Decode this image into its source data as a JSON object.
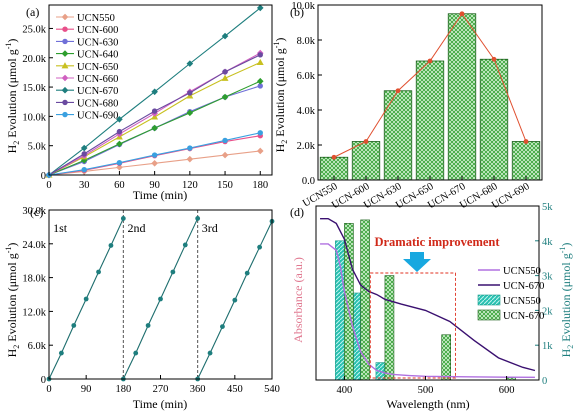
{
  "chart_data": [
    {
      "panel": "(a)",
      "type": "line",
      "xlabel": "Time (min)",
      "ylabel": "H2 Evolution (μmol g-1)",
      "xlim": [
        0,
        190
      ],
      "ylim": [
        0,
        29
      ],
      "xticks": [
        "0",
        "30",
        "60",
        "90",
        "120",
        "150",
        "180"
      ],
      "yticks": [
        "0",
        "5.0k",
        "10.0k",
        "15.0k",
        "20.0k",
        "25.0k"
      ],
      "x": [
        0,
        30,
        60,
        90,
        120,
        150,
        180
      ],
      "series": [
        {
          "name": "UCN550",
          "color": "#E8A088",
          "marker": "diamond",
          "values": [
            0,
            0.6,
            1.3,
            2.0,
            2.7,
            3.4,
            4.1
          ]
        },
        {
          "name": "UCN-600",
          "color": "#E8508A",
          "marker": "circle",
          "values": [
            0,
            0.8,
            2.0,
            3.3,
            4.5,
            5.7,
            6.7
          ]
        },
        {
          "name": "UCN-630",
          "color": "#7070D8",
          "marker": "circle",
          "values": [
            0,
            2.3,
            5.2,
            8.0,
            10.8,
            13.3,
            15.2
          ]
        },
        {
          "name": "UCN-640",
          "color": "#2E9E2E",
          "marker": "diamond",
          "values": [
            0,
            2.5,
            5.3,
            8.0,
            10.6,
            13.3,
            16.0
          ]
        },
        {
          "name": "UCN-650",
          "color": "#C8C020",
          "marker": "triangle",
          "values": [
            0,
            3.1,
            6.5,
            9.9,
            13.5,
            16.5,
            19.2
          ]
        },
        {
          "name": "UCN-660",
          "color": "#D060C0",
          "marker": "diamond",
          "values": [
            0,
            3.3,
            7.0,
            10.5,
            14.2,
            17.6,
            20.8
          ]
        },
        {
          "name": "UCN-670",
          "color": "#1E7E7E",
          "marker": "diamond",
          "values": [
            0,
            4.6,
            9.5,
            14.2,
            19.0,
            23.7,
            28.5
          ]
        },
        {
          "name": "UCN-680",
          "color": "#6A4AA0",
          "marker": "circle",
          "values": [
            0,
            3.6,
            7.4,
            10.9,
            14.0,
            17.6,
            20.5
          ]
        },
        {
          "name": "UCN-690",
          "color": "#3AA0E0",
          "marker": "circle",
          "values": [
            0,
            0.9,
            2.1,
            3.4,
            4.6,
            5.9,
            7.2
          ]
        }
      ]
    },
    {
      "panel": "(b)",
      "type": "bar",
      "ylabel": "H2 Evolution (μmol g-1)",
      "ylim": [
        0,
        10.0
      ],
      "yticks": [
        "0.0",
        "2.0k",
        "4.0k",
        "6.0k",
        "8.0k",
        "10.0k"
      ],
      "categories": [
        "UCN550",
        "UCN-600",
        "UCN-630",
        "UCN-650",
        "UCN-670",
        "UCN-680",
        "UCN-690"
      ],
      "values": [
        1.3,
        2.2,
        5.1,
        6.8,
        9.5,
        6.9,
        2.2
      ]
    },
    {
      "panel": "(c)",
      "type": "line",
      "xlabel": "Time (min)",
      "ylabel": "H2 Evolution (μmol g-1)",
      "xlim": [
        0,
        540
      ],
      "ylim": [
        0,
        30
      ],
      "xticks": [
        "0",
        "90",
        "180",
        "270",
        "360",
        "450",
        "540"
      ],
      "yticks": [
        "0",
        "6.0k",
        "12.0k",
        "18.0k",
        "24.0k",
        "30.0k"
      ],
      "cycle_labels": [
        "1st",
        "2nd",
        "3rd"
      ],
      "cycles": [
        {
          "x": [
            0,
            30,
            60,
            90,
            120,
            150,
            180
          ],
          "values": [
            0,
            4.6,
            9.5,
            14.2,
            19.0,
            23.7,
            28.5
          ]
        },
        {
          "x": [
            180,
            210,
            240,
            270,
            300,
            330,
            360
          ],
          "values": [
            0,
            4.6,
            9.5,
            14.2,
            19.0,
            23.8,
            28.5
          ]
        },
        {
          "x": [
            360,
            390,
            420,
            450,
            480,
            510,
            540
          ],
          "values": [
            0,
            4.6,
            9.3,
            14.0,
            18.8,
            23.4,
            28.0
          ]
        }
      ]
    },
    {
      "panel": "(d)",
      "type": "line+bar",
      "xlabel": "Wavelength (nm)",
      "ylabel_left": "Absorbance (a.u.)",
      "ylabel_right": "H2 Evolution (μmol g-1)",
      "xlim": [
        365,
        640
      ],
      "ylim_right": [
        0,
        5.0
      ],
      "xticks": [
        "400",
        "500",
        "600"
      ],
      "yticks_right": [
        "0",
        "1k",
        "2k",
        "3k",
        "4k",
        "5k"
      ],
      "annotation": "Dramatic improvement",
      "absorbance": [
        {
          "name": "UCN550",
          "color": "#B070E0",
          "x": [
            370,
            380,
            390,
            395,
            400,
            410,
            420,
            430,
            440,
            450,
            460,
            480,
            500,
            550,
            600,
            635
          ],
          "values": [
            0.86,
            0.86,
            0.82,
            0.72,
            0.56,
            0.34,
            0.18,
            0.1,
            0.06,
            0.045,
            0.035,
            0.028,
            0.023,
            0.02,
            0.018,
            0.017
          ]
        },
        {
          "name": "UCN-670",
          "color": "#3A1070",
          "x": [
            370,
            380,
            390,
            400,
            410,
            420,
            430,
            440,
            450,
            470,
            500,
            530,
            560,
            590,
            620,
            635
          ],
          "values": [
            1.02,
            1.02,
            0.99,
            0.89,
            0.7,
            0.6,
            0.56,
            0.54,
            0.51,
            0.48,
            0.44,
            0.37,
            0.25,
            0.14,
            0.08,
            0.06
          ]
        }
      ],
      "bars": [
        {
          "name": "UCN550",
          "color": "#28C0B0",
          "x": [
            400,
            420,
            450,
            520,
            600
          ],
          "values": [
            4.0,
            2.5,
            0.5,
            0.0,
            0.0
          ]
        },
        {
          "name": "UCN-670",
          "color": "#2E9E2E",
          "x": [
            400,
            420,
            450,
            520,
            600
          ],
          "values": [
            4.5,
            4.6,
            3.0,
            1.3,
            0.07
          ]
        }
      ]
    }
  ]
}
